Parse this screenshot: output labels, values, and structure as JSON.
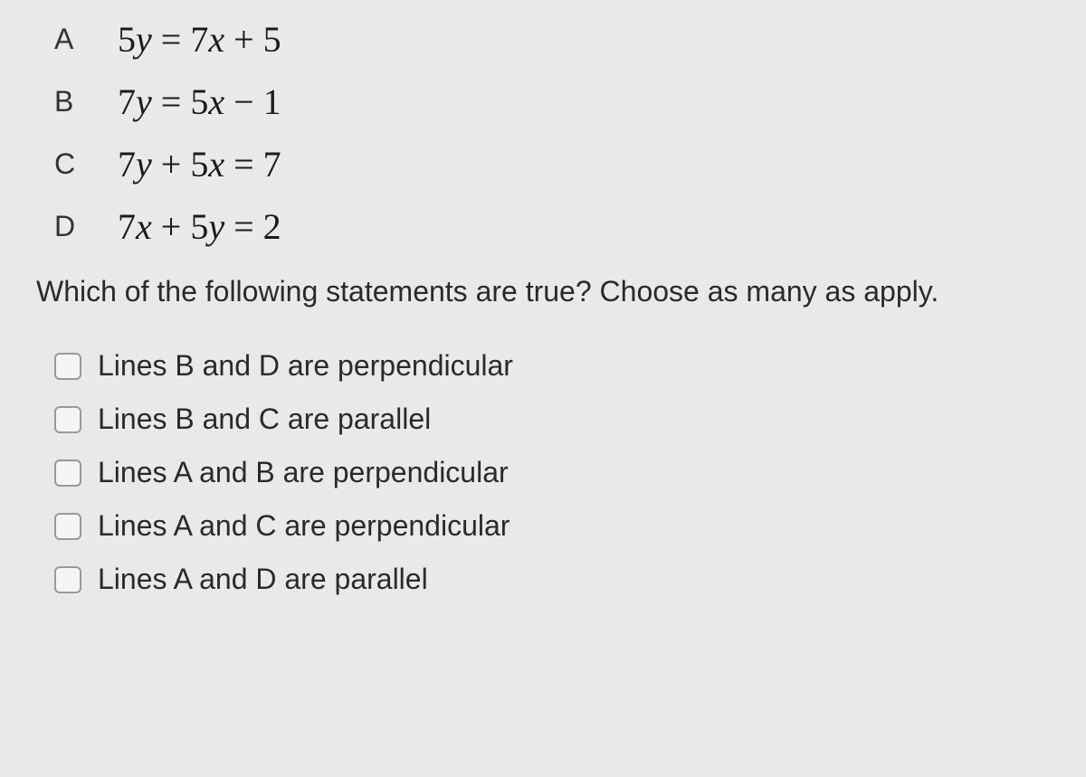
{
  "equations": [
    {
      "label": "A",
      "lhs_coef": "5",
      "lhs_var": "y",
      "op1": "=",
      "rhs1_coef": "7",
      "rhs1_var": "x",
      "op2": "+",
      "rhs2": "5",
      "form": "y_eq"
    },
    {
      "label": "B",
      "lhs_coef": "7",
      "lhs_var": "y",
      "op1": "=",
      "rhs1_coef": "5",
      "rhs1_var": "x",
      "op2": "−",
      "rhs2": "1",
      "form": "y_eq"
    },
    {
      "label": "C",
      "lhs_coef": "7",
      "lhs_var": "y",
      "op1": "+",
      "mid_coef": "5",
      "mid_var": "x",
      "op2": "=",
      "rhs2": "7",
      "form": "std"
    },
    {
      "label": "D",
      "lhs_coef": "7",
      "lhs_var": "x",
      "op1": "+",
      "mid_coef": "5",
      "mid_var": "y",
      "op2": "=",
      "rhs2": "2",
      "form": "std"
    }
  ],
  "question": "Which of the following statements are true? Choose as many as apply.",
  "choices": [
    {
      "text": "Lines B and D are perpendicular"
    },
    {
      "text": "Lines B and C are parallel"
    },
    {
      "text": "Lines A and B are perpendicular"
    },
    {
      "text": "Lines A and C are perpendicular"
    },
    {
      "text": "Lines A and D are parallel"
    }
  ],
  "colors": {
    "background": "#e8e9e8",
    "text": "#2a2a2a",
    "checkbox_border": "#999999",
    "checkbox_bg": "#f5f5f5"
  },
  "typography": {
    "label_fontsize": 32,
    "equation_fontsize": 40,
    "question_fontsize": 32,
    "choice_fontsize": 32
  }
}
